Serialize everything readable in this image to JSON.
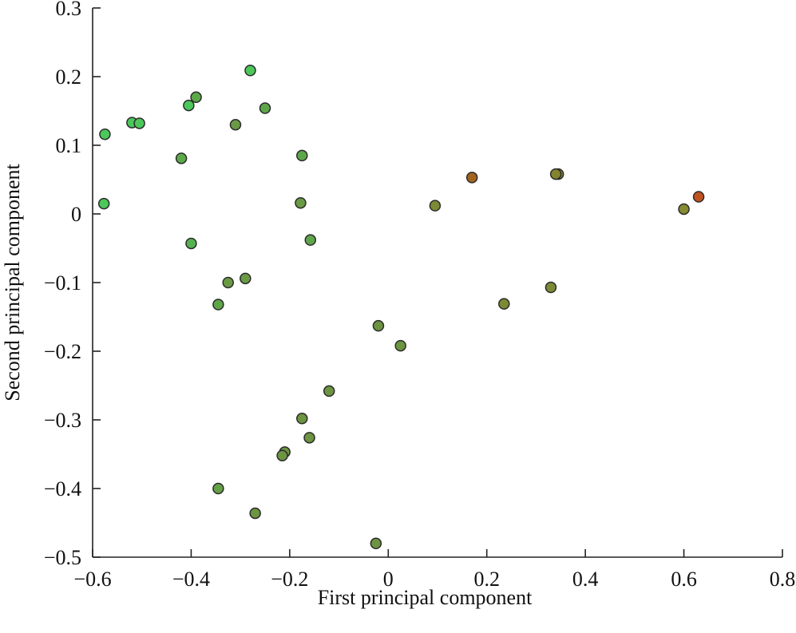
{
  "chart_data": {
    "type": "scatter",
    "xlabel": "First principal component",
    "ylabel": "Second principal component",
    "xlim": [
      -0.6,
      0.8
    ],
    "ylim": [
      -0.5,
      0.3
    ],
    "xticks": [
      -0.6,
      -0.4,
      -0.2,
      0,
      0.2,
      0.4,
      0.6,
      0.8
    ],
    "yticks": [
      -0.5,
      -0.4,
      -0.3,
      -0.2,
      -0.1,
      0,
      0.1,
      0.2,
      0.3
    ],
    "xtick_labels": [
      "−0.6",
      "−0.4",
      "−0.2",
      "0",
      "0.2",
      "0.4",
      "0.6",
      "0.8"
    ],
    "ytick_labels": [
      "−0.5",
      "−0.4",
      "−0.3",
      "−0.2",
      "−0.1",
      "0",
      "0.1",
      "0.2",
      "0.3"
    ],
    "grid": false,
    "legend": "none",
    "colors": {
      "green": "#4cc75a",
      "olive": "#6d9440",
      "olive_brown": "#84842f",
      "brown": "#a3641f",
      "orange_red": "#c1511f"
    },
    "points": [
      {
        "x": -0.575,
        "y": 0.116,
        "color": "#4cc75a"
      },
      {
        "x": -0.577,
        "y": 0.015,
        "color": "#4cc75a"
      },
      {
        "x": -0.52,
        "y": 0.133,
        "color": "#4cc75a"
      },
      {
        "x": -0.505,
        "y": 0.132,
        "color": "#4cc75a"
      },
      {
        "x": -0.405,
        "y": 0.158,
        "color": "#4cc75a"
      },
      {
        "x": -0.39,
        "y": 0.17,
        "color": "#5ca84a"
      },
      {
        "x": -0.42,
        "y": 0.081,
        "color": "#5ca84a"
      },
      {
        "x": -0.4,
        "y": -0.043,
        "color": "#54b250"
      },
      {
        "x": -0.28,
        "y": 0.209,
        "color": "#4cc75a"
      },
      {
        "x": -0.31,
        "y": 0.13,
        "color": "#6a9a44"
      },
      {
        "x": -0.25,
        "y": 0.154,
        "color": "#5ea64a"
      },
      {
        "x": -0.175,
        "y": 0.085,
        "color": "#5ea64a"
      },
      {
        "x": -0.178,
        "y": 0.016,
        "color": "#6a9a44"
      },
      {
        "x": -0.158,
        "y": -0.038,
        "color": "#5ea64a"
      },
      {
        "x": -0.325,
        "y": -0.1,
        "color": "#6a9a44"
      },
      {
        "x": -0.29,
        "y": -0.094,
        "color": "#6a9a44"
      },
      {
        "x": -0.345,
        "y": -0.132,
        "color": "#5ea64a"
      },
      {
        "x": -0.02,
        "y": -0.163,
        "color": "#6d9440"
      },
      {
        "x": 0.025,
        "y": -0.192,
        "color": "#6d9440"
      },
      {
        "x": -0.12,
        "y": -0.258,
        "color": "#6d9440"
      },
      {
        "x": -0.175,
        "y": -0.298,
        "color": "#6d9440"
      },
      {
        "x": -0.16,
        "y": -0.326,
        "color": "#6d9440"
      },
      {
        "x": -0.21,
        "y": -0.347,
        "color": "#6d9440"
      },
      {
        "x": -0.215,
        "y": -0.352,
        "color": "#6d9440"
      },
      {
        "x": -0.345,
        "y": -0.4,
        "color": "#64a048"
      },
      {
        "x": -0.27,
        "y": -0.436,
        "color": "#6d9440"
      },
      {
        "x": -0.025,
        "y": -0.48,
        "color": "#6d9440"
      },
      {
        "x": 0.095,
        "y": 0.012,
        "color": "#7d8a35"
      },
      {
        "x": 0.17,
        "y": 0.053,
        "color": "#a3641f"
      },
      {
        "x": 0.345,
        "y": 0.058,
        "color": "#84842f"
      },
      {
        "x": 0.34,
        "y": 0.058,
        "color": "#84842f"
      },
      {
        "x": 0.235,
        "y": -0.131,
        "color": "#7d8a35"
      },
      {
        "x": 0.33,
        "y": -0.107,
        "color": "#7d8a35"
      },
      {
        "x": 0.6,
        "y": 0.007,
        "color": "#868a30"
      },
      {
        "x": 0.63,
        "y": 0.025,
        "color": "#c1511f"
      }
    ]
  }
}
